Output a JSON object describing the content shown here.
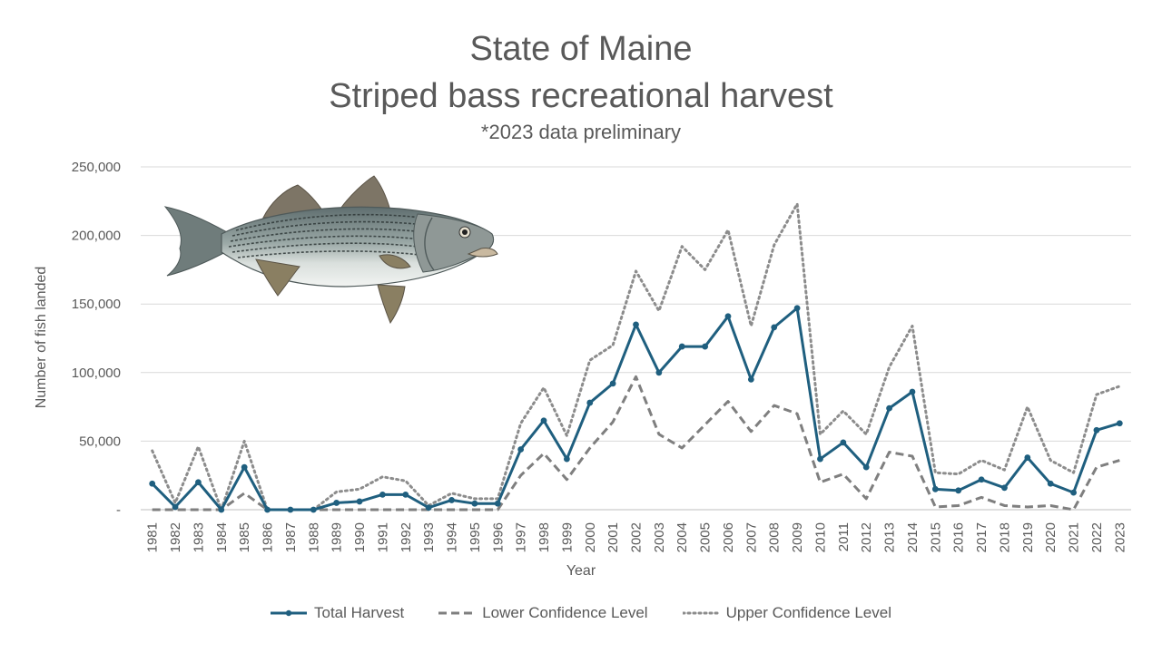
{
  "chart_data": {
    "type": "line",
    "title": "State of Maine",
    "subtitle": "Striped bass recreational harvest",
    "note": "*2023 data preliminary",
    "xlabel": "Year",
    "ylabel": "Number of fish landed",
    "ylim": [
      0,
      250000
    ],
    "yticks": [
      0,
      50000,
      100000,
      150000,
      200000,
      250000
    ],
    "ytick_labels": [
      "-",
      "50,000",
      "100,000",
      "150,000",
      "200,000",
      "250,000"
    ],
    "grid": true,
    "legend_position": "bottom",
    "x": [
      "1981",
      "1982",
      "1983",
      "1984",
      "1985",
      "1986",
      "1987",
      "1988",
      "1989",
      "1990",
      "1991",
      "1992",
      "1993",
      "1994",
      "1995",
      "1996",
      "1997",
      "1998",
      "1999",
      "2000",
      "2001",
      "2002",
      "2003",
      "2004",
      "2005",
      "2006",
      "2007",
      "2008",
      "2009",
      "2010",
      "2011",
      "2012",
      "2013",
      "2014",
      "2015",
      "2016",
      "2017",
      "2018",
      "2019",
      "2020",
      "2021",
      "2022",
      "2023"
    ],
    "series": [
      {
        "name": "Total Harvest",
        "style": "solid-markers",
        "color": "#1f5f7f",
        "values": [
          19000,
          2000,
          20000,
          0,
          31000,
          0,
          0,
          0,
          5000,
          6000,
          11000,
          11000,
          1500,
          7000,
          4500,
          4500,
          44000,
          65000,
          37000,
          78000,
          92000,
          135000,
          100000,
          119000,
          119000,
          141000,
          95000,
          133000,
          147000,
          37000,
          49000,
          31000,
          74000,
          86000,
          15000,
          14000,
          22000,
          16000,
          38000,
          19000,
          12500,
          58000,
          63000
        ]
      },
      {
        "name": "Lower Confidence Level",
        "style": "dashed",
        "color": "#7f7f7f",
        "values": [
          0,
          0,
          0,
          0,
          12000,
          0,
          0,
          0,
          0,
          0,
          0,
          0,
          0,
          0,
          0,
          0,
          25000,
          41000,
          22000,
          45000,
          64000,
          97000,
          55000,
          45000,
          62000,
          79000,
          57000,
          76000,
          70000,
          20000,
          26000,
          8000,
          42000,
          39000,
          2000,
          3000,
          9000,
          3000,
          2000,
          3000,
          0,
          31000,
          36000
        ]
      },
      {
        "name": "Upper Confidence Level",
        "style": "dotted",
        "color": "#8c8c8c",
        "values": [
          43000,
          5000,
          46000,
          0,
          50000,
          0,
          0,
          0,
          13000,
          15000,
          24000,
          21000,
          3000,
          12000,
          8000,
          8000,
          63000,
          89000,
          54000,
          109000,
          120000,
          174000,
          145000,
          192000,
          175000,
          204000,
          134000,
          193000,
          223000,
          55000,
          72000,
          55000,
          104000,
          134000,
          27000,
          26000,
          36000,
          29000,
          75000,
          36000,
          27000,
          84000,
          90000
        ]
      }
    ]
  }
}
